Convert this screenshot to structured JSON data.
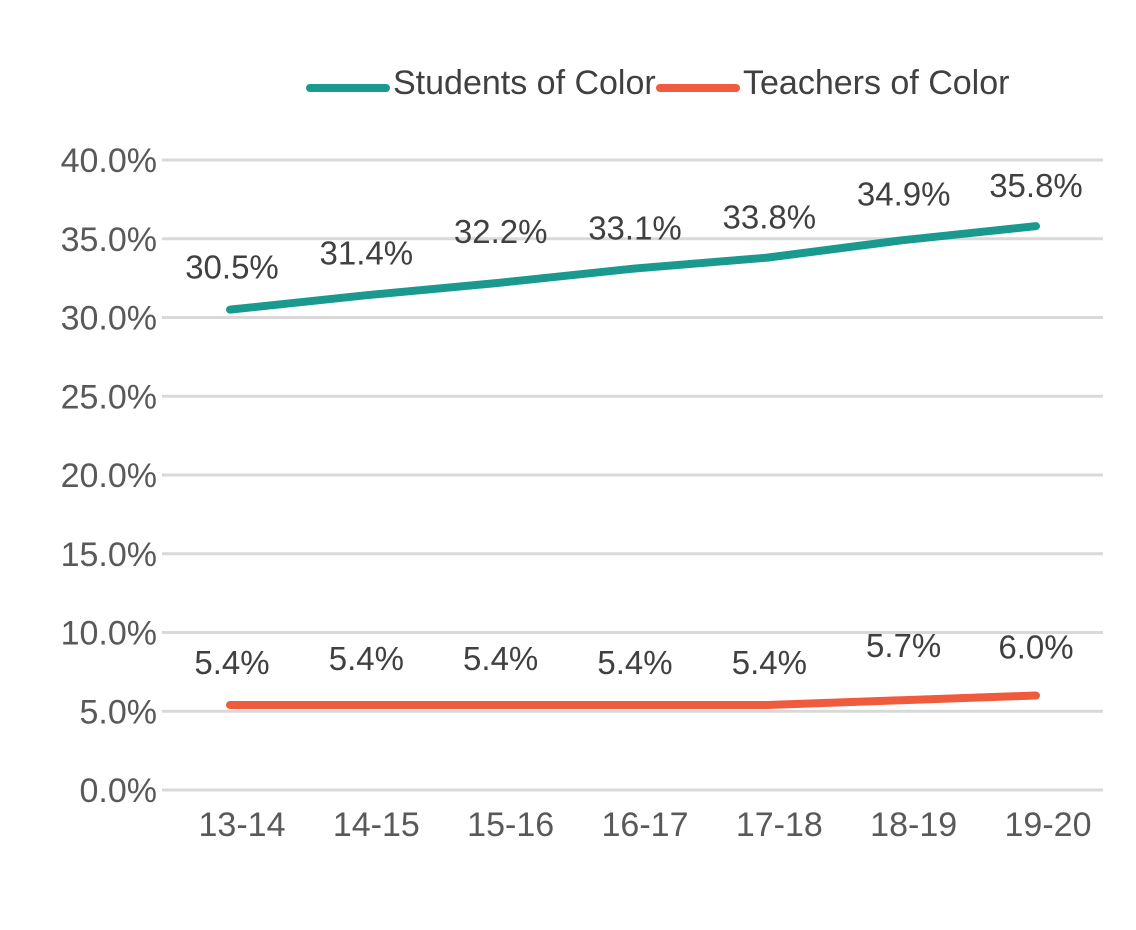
{
  "chart_data": {
    "type": "line",
    "categories": [
      "13-14",
      "14-15",
      "15-16",
      "16-17",
      "17-18",
      "18-19",
      "19-20"
    ],
    "series": [
      {
        "name": "Students of Color",
        "color": "#1a9a8e",
        "values": [
          30.5,
          31.4,
          32.2,
          33.1,
          33.8,
          34.9,
          35.8
        ],
        "labels": [
          "30.5%",
          "31.4%",
          "32.2%",
          "33.1%",
          "33.8%",
          "34.9%",
          "35.8%"
        ]
      },
      {
        "name": "Teachers of Color",
        "color": "#ef5b3c",
        "values": [
          5.4,
          5.4,
          5.4,
          5.4,
          5.4,
          5.7,
          6.0
        ],
        "labels": [
          "5.4%",
          "5.4%",
          "5.4%",
          "5.4%",
          "5.4%",
          "5.7%",
          "6.0%"
        ]
      }
    ],
    "ylim": [
      0,
      40
    ],
    "yticks": [
      "0.0%",
      "5.0%",
      "10.0%",
      "15.0%",
      "20.0%",
      "25.0%",
      "30.0%",
      "35.0%",
      "40.0%"
    ],
    "grid": true,
    "grid_color": "#d9d9d9",
    "legend_position": "top"
  }
}
